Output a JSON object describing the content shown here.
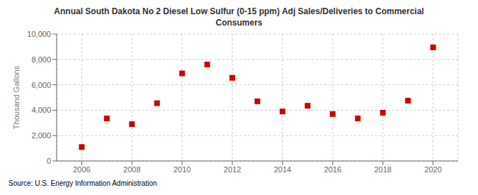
{
  "chart_data": {
    "type": "scatter",
    "title": "Annual South Dakota No 2 Diesel Low Sulfur (0-15 ppm) Adj Sales/Deliveries to Commercial\nConsumers",
    "y_label": "Thousand Gallons",
    "annotations": [
      "Source: U.S. Energy Information Administration"
    ],
    "x": [
      2006,
      2007,
      2008,
      2009,
      2010,
      2011,
      2012,
      2013,
      2014,
      2015,
      2016,
      2017,
      2018,
      2019,
      2020
    ],
    "values": [
      1100,
      3350,
      2900,
      4550,
      6900,
      7600,
      6550,
      4700,
      3900,
      4350,
      3700,
      3350,
      3800,
      4750,
      8950
    ],
    "color": "#cc0000",
    "marker": "square",
    "grid": true,
    "xlim": [
      2005,
      2021
    ],
    "xticks": [
      2006,
      2008,
      2010,
      2012,
      2014,
      2016,
      2018,
      2020
    ],
    "ylim": [
      0,
      10000
    ],
    "yticks": [
      0,
      {
        "value": 2000,
        "label": "2,000"
      },
      {
        "value": 4000,
        "label": "4,000"
      },
      {
        "value": 6000,
        "label": "6,000"
      },
      {
        "value": 8000,
        "label": "8,000"
      },
      {
        "value": 10000,
        "label": "10,000"
      }
    ]
  }
}
